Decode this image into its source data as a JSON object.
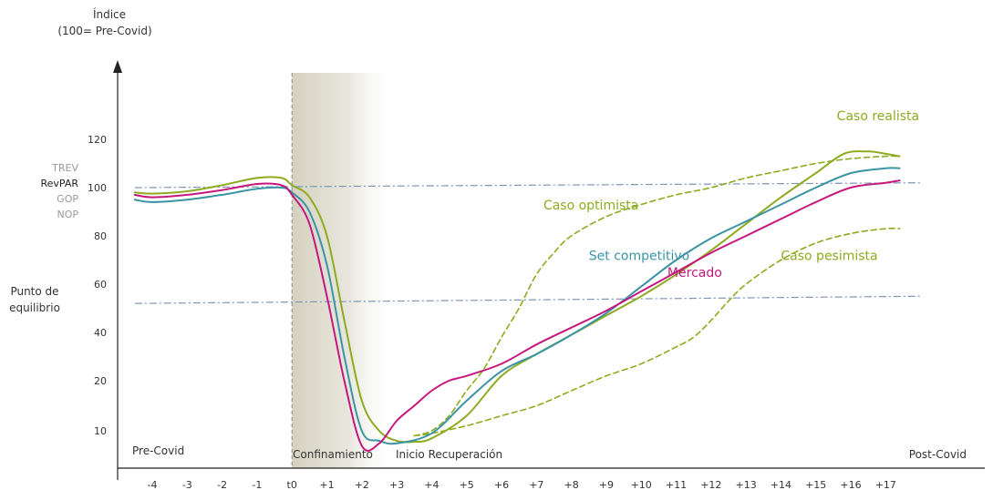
{
  "chart_data": {
    "type": "line",
    "y_axis": {
      "title_line1": "Índice",
      "title_line2": "(100= Pre-Covid)",
      "ticks": [
        10,
        20,
        40,
        60,
        80,
        100,
        120
      ],
      "tick_labels": [
        "10",
        "20",
        "40",
        "60",
        "80",
        "100",
        "120"
      ]
    },
    "x_axis": {
      "categories": [
        "-4",
        "-3",
        "-2",
        "-1",
        "t0",
        "+1",
        "+2",
        "+3",
        "+4",
        "+5",
        "+6",
        "+7",
        "+8",
        "+9",
        "+10",
        "+11",
        "+12",
        "+13",
        "+14",
        "+15",
        "+16",
        "+17"
      ]
    },
    "left_labels": {
      "trev": "TREV",
      "revpar": "RevPAR",
      "gop": "GOP",
      "nop": "NOP",
      "punto_line1": "Punto de",
      "punto_line2": "equilibrio"
    },
    "phases": {
      "pre_covid": "Pre-Covid",
      "confinamiento": "Confinamiento",
      "inicio": "Inicio Recuperación",
      "post_covid": "Post-Covid"
    },
    "reference_lines": [
      {
        "name": "100",
        "from": [
          -4.5,
          100
        ],
        "to": [
          18,
          102
        ]
      },
      {
        "name": "Punto de equilibrio",
        "from": [
          -4.5,
          52
        ],
        "to": [
          18,
          55
        ]
      }
    ],
    "series": [
      {
        "name": "Caso realista",
        "color": "#8cab1f",
        "dash": false,
        "points": [
          [
            -4.5,
            98
          ],
          [
            -4,
            97.5
          ],
          [
            -3,
            98.5
          ],
          [
            -2,
            101
          ],
          [
            -1,
            104
          ],
          [
            -0.3,
            104
          ],
          [
            0,
            101
          ],
          [
            0.5,
            96
          ],
          [
            1,
            80
          ],
          [
            1.5,
            45
          ],
          [
            2,
            16
          ],
          [
            2.5,
            10
          ],
          [
            3,
            8
          ],
          [
            3.5,
            7.8
          ],
          [
            4,
            8.5
          ],
          [
            5,
            13
          ],
          [
            6,
            22
          ],
          [
            7,
            31
          ],
          [
            8,
            39
          ],
          [
            9,
            47
          ],
          [
            10,
            55
          ],
          [
            11,
            64
          ],
          [
            12,
            74
          ],
          [
            13,
            85
          ],
          [
            14,
            96
          ],
          [
            15,
            106
          ],
          [
            15.8,
            114
          ],
          [
            16.5,
            115
          ],
          [
            17,
            114
          ],
          [
            17.4,
            113
          ]
        ]
      },
      {
        "name": "Caso optimista",
        "color": "#8cab1f",
        "dash": true,
        "points": [
          [
            3.5,
            9
          ],
          [
            4,
            10
          ],
          [
            4.5,
            13
          ],
          [
            5,
            18
          ],
          [
            5.5,
            25
          ],
          [
            6,
            38
          ],
          [
            6.5,
            50
          ],
          [
            7,
            64
          ],
          [
            7.5,
            73
          ],
          [
            8,
            80
          ],
          [
            9,
            88
          ],
          [
            10,
            93
          ],
          [
            11,
            97
          ],
          [
            12,
            100
          ],
          [
            13,
            104
          ],
          [
            14,
            107
          ],
          [
            15,
            110
          ],
          [
            16,
            112
          ],
          [
            17,
            113
          ],
          [
            17.4,
            113
          ]
        ]
      },
      {
        "name": "Caso pesimista",
        "color": "#8cab1f",
        "dash": true,
        "points": [
          [
            3.5,
            9
          ],
          [
            4,
            9.5
          ],
          [
            5,
            11
          ],
          [
            6,
            13
          ],
          [
            7,
            15
          ],
          [
            8,
            18
          ],
          [
            9,
            22
          ],
          [
            10,
            27
          ],
          [
            11,
            34
          ],
          [
            11.5,
            38
          ],
          [
            12,
            45
          ],
          [
            12.5,
            53
          ],
          [
            13,
            60
          ],
          [
            14,
            70
          ],
          [
            15,
            77
          ],
          [
            16,
            81
          ],
          [
            17,
            83
          ],
          [
            17.4,
            83
          ]
        ]
      },
      {
        "name": "Set competitivo",
        "color": "#3a94a4",
        "dash": false,
        "points": [
          [
            -4.5,
            95
          ],
          [
            -4,
            94
          ],
          [
            -3,
            95
          ],
          [
            -2,
            97
          ],
          [
            -1,
            99.5
          ],
          [
            -0.3,
            100
          ],
          [
            0,
            98
          ],
          [
            0.5,
            90
          ],
          [
            1,
            68
          ],
          [
            1.5,
            30
          ],
          [
            2,
            10
          ],
          [
            2.5,
            8
          ],
          [
            3,
            7.5
          ],
          [
            4,
            9.5
          ],
          [
            5,
            16
          ],
          [
            6,
            24
          ],
          [
            7,
            31
          ],
          [
            8,
            39
          ],
          [
            9,
            48
          ],
          [
            10,
            59
          ],
          [
            11,
            70
          ],
          [
            12,
            79
          ],
          [
            13,
            86
          ],
          [
            14,
            93
          ],
          [
            15,
            100
          ],
          [
            16,
            106
          ],
          [
            17,
            108
          ],
          [
            17.4,
            108
          ]
        ]
      },
      {
        "name": "Mercado",
        "color": "#c4187f",
        "dash": false,
        "points": [
          [
            -4.5,
            97
          ],
          [
            -4,
            96
          ],
          [
            -3,
            97
          ],
          [
            -2,
            99
          ],
          [
            -1,
            101.5
          ],
          [
            -0.3,
            101
          ],
          [
            0,
            97
          ],
          [
            0.5,
            85
          ],
          [
            1,
            55
          ],
          [
            1.5,
            20
          ],
          [
            2,
            7
          ],
          [
            2.5,
            7.5
          ],
          [
            3,
            12
          ],
          [
            3.5,
            15
          ],
          [
            4,
            18
          ],
          [
            4.5,
            20
          ],
          [
            5,
            22
          ],
          [
            6,
            27
          ],
          [
            7,
            35
          ],
          [
            8,
            42
          ],
          [
            9,
            49
          ],
          [
            10,
            57
          ],
          [
            11,
            65
          ],
          [
            12,
            73
          ],
          [
            13,
            80
          ],
          [
            14,
            87
          ],
          [
            15,
            94
          ],
          [
            16,
            100
          ],
          [
            17,
            102
          ],
          [
            17.4,
            103
          ]
        ]
      }
    ],
    "series_labels": [
      {
        "name": "Caso realista",
        "text": "Caso realista",
        "color": "#8cab1f",
        "at": [
          15.6,
          128
        ]
      },
      {
        "name": "Caso optimista",
        "text": "Caso optimista",
        "color": "#8cab1f",
        "at": [
          7.2,
          91
        ]
      },
      {
        "name": "Set competitivo",
        "text": "Set competitivo",
        "color": "#3a94a4",
        "at": [
          8.5,
          70
        ]
      },
      {
        "name": "Mercado",
        "text": "Mercado",
        "color": "#c4187f",
        "at": [
          10.75,
          63
        ]
      },
      {
        "name": "Caso pesimista",
        "text": "Caso pesimista",
        "color": "#8cab1f",
        "at": [
          14,
          70
        ]
      }
    ],
    "shaded_region": {
      "from": 0,
      "to": 3,
      "color": "#d4d1c0"
    }
  }
}
